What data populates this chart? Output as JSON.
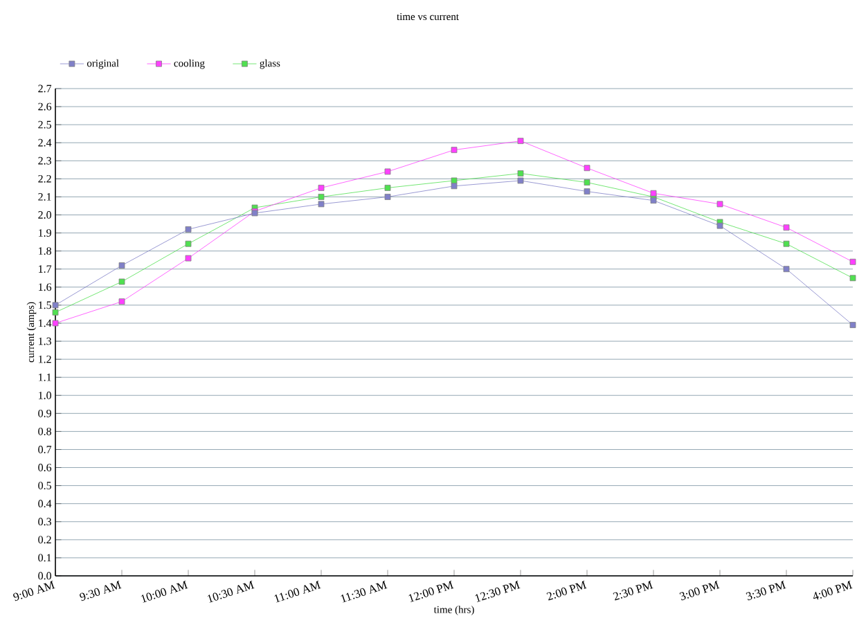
{
  "chart_data": {
    "type": "line",
    "title": "time vs current",
    "xlabel": "time (hrs)",
    "ylabel": "current (amps)",
    "categories": [
      "9:00 AM",
      "9:30 AM",
      "10:00 AM",
      "10:30 AM",
      "11:00 AM",
      "11:30 AM",
      "12:00 PM",
      "12:30 PM",
      "2:00 PM",
      "2:30 PM",
      "3:00 PM",
      "3:30 PM",
      "4:00 PM"
    ],
    "series": [
      {
        "name": "original",
        "color": "#8080c8",
        "values": [
          1.5,
          1.72,
          1.92,
          2.01,
          2.06,
          2.1,
          2.16,
          2.19,
          2.13,
          2.08,
          1.94,
          1.7,
          1.39
        ]
      },
      {
        "name": "cooling",
        "color": "#ff40ff",
        "values": [
          1.4,
          1.52,
          1.76,
          2.02,
          2.15,
          2.24,
          2.36,
          2.41,
          2.26,
          2.12,
          2.06,
          1.93,
          1.74
        ]
      },
      {
        "name": "glass",
        "color": "#50e050",
        "values": [
          1.46,
          1.63,
          1.84,
          2.04,
          2.1,
          2.15,
          2.19,
          2.23,
          2.18,
          2.1,
          1.96,
          1.84,
          1.65
        ]
      }
    ],
    "ylim": [
      0,
      2.7
    ],
    "yticks": [
      {
        "value": 0,
        "label": "0.0"
      },
      0.1,
      0.2,
      0.3,
      0.4,
      0.5,
      0.6,
      0.7,
      0.8,
      0.9,
      {
        "value": 1,
        "label": "1.0"
      },
      1.1,
      1.2,
      1.3,
      1.4,
      1.5,
      1.6,
      1.7,
      1.8,
      1.9,
      {
        "value": 2,
        "label": "2.0"
      },
      2.1,
      2.2,
      2.3,
      2.4,
      2.5,
      2.6,
      2.7
    ],
    "grid": "y",
    "legend": "top left",
    "marker": "square"
  }
}
